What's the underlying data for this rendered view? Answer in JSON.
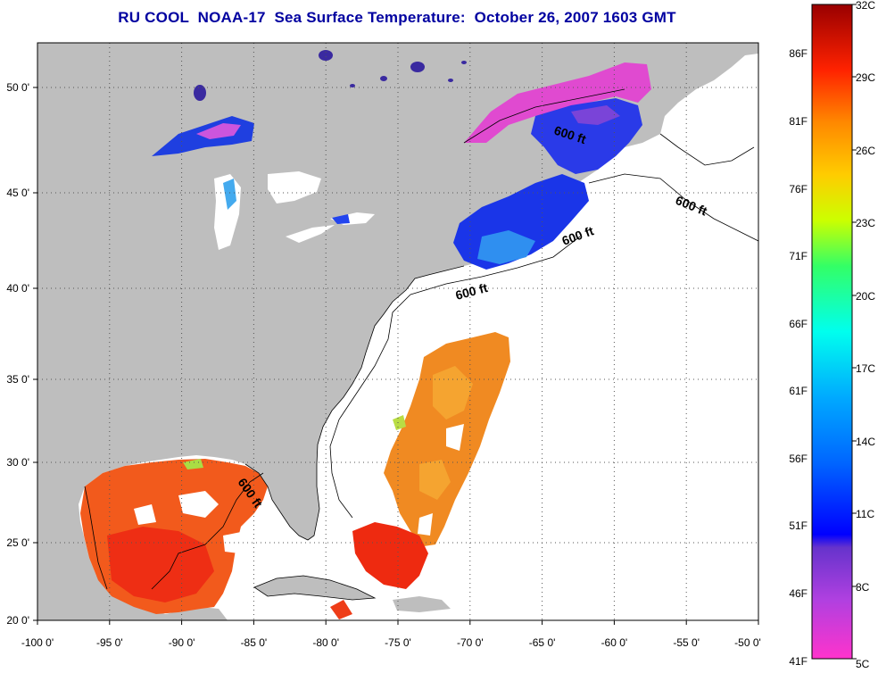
{
  "title": "RU COOL  NOAA-17  Sea Surface Temperature:  October 26, 2007 1603 GMT",
  "map": {
    "lon_labels": [
      "-100 0'",
      "-95 0'",
      "-90 0'",
      "-85 0'",
      "-80 0'",
      "-75 0'",
      "-70 0'",
      "-65 0'",
      "-60 0'",
      "-55 0'",
      "-50 0'"
    ],
    "lat_labels": [
      "50 0'",
      "45 0'",
      "40 0'",
      "35 0'",
      "30 0'",
      "25 0'",
      "20 0'"
    ],
    "contour_labels": [
      "600 ft",
      "600 ft",
      "600 ft",
      "600 ft",
      "600 ft"
    ],
    "colors": {
      "land": "#bebebe",
      "no_data": "#ffffff",
      "grid": "#555555"
    }
  },
  "colorbar": {
    "fahrenheit_labels": [
      "86F",
      "81F",
      "76F",
      "71F",
      "66F",
      "61F",
      "56F",
      "51F",
      "46F",
      "41F"
    ],
    "celsius_labels": [
      "32C",
      "29C",
      "26C",
      "23C",
      "20C",
      "17C",
      "14C",
      "11C",
      "8C",
      "5C"
    ],
    "celsius_min": 5,
    "celsius_max": 32,
    "scale_colors": [
      "#ff33cc",
      "#8a3fd6",
      "#0000ff",
      "#0088ff",
      "#00e5ff",
      "#33ff99",
      "#ccff00",
      "#ffcc00",
      "#ff8800",
      "#ff1a00",
      "#aa0000"
    ]
  }
}
